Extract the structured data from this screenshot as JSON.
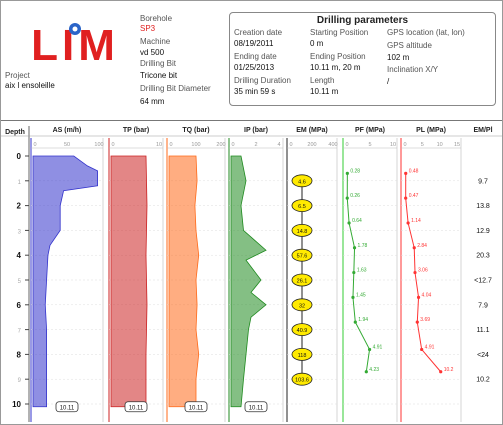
{
  "logo": {
    "text": "LIM"
  },
  "borehole": {
    "label": "Borehole",
    "value": "SP3"
  },
  "machine": {
    "label": "Machine",
    "value": "vd 500"
  },
  "drilling_bit": {
    "label": "Drilling Bit",
    "value": "Tricone bit"
  },
  "drilling_bit_diameter": {
    "label": "Drilling Bit Diameter",
    "value": "64 mm"
  },
  "project": {
    "label": "Project",
    "value": "aix l ensoleille"
  },
  "drilling_parameters": {
    "title": "Drilling parameters",
    "creation_date_label": "Creation date",
    "creation_date": "08/19/2011",
    "ending_date_label": "Ending date",
    "ending_date": "01/25/2013",
    "drilling_duration_label": "Drilling Duration",
    "drilling_duration": "35 min 59 s",
    "starting_position_label": "Starting Position",
    "starting_position": "0 m",
    "ending_position_label": "Ending Position",
    "ending_position": "10.11 m, 20 m",
    "length_label": "Length",
    "length": "10.11 m",
    "gps_location_label": "GPS location (lat, lon)",
    "gps_altitude_label": "GPS altitude",
    "gps_altitude": "102 m",
    "inclination_label": "Inclination X/Y",
    "inclination": "/"
  },
  "chart_data": {
    "type": "line",
    "y_axis": {
      "label": "Depth",
      "range": [
        0,
        10
      ],
      "ticks": [
        "0",
        "1",
        "2",
        "3",
        "4",
        "5",
        "6",
        "7",
        "8",
        "9",
        "10"
      ]
    },
    "end_depth_label": "10.11",
    "columns": [
      {
        "name": "AS (m/h)",
        "ticks": [
          "0",
          "50",
          "100"
        ],
        "xlim": [
          0,
          100
        ],
        "color": "#3333cc"
      },
      {
        "name": "TP (bar)",
        "ticks": [
          "0",
          "10"
        ],
        "xlim": [
          0,
          10
        ],
        "color": "#cc2222"
      },
      {
        "name": "TQ (bar)",
        "ticks": [
          "0",
          "100",
          "200"
        ],
        "xlim": [
          0,
          200
        ],
        "color": "#ff6a1a"
      },
      {
        "name": "IP (bar)",
        "ticks": [
          "0",
          "2",
          "4"
        ],
        "xlim": [
          0,
          4
        ],
        "color": "#1f8a1f"
      },
      {
        "name": "EM (MPa)",
        "ticks": [
          "0",
          "200",
          "400"
        ],
        "xlim": [
          0,
          400
        ],
        "color": "#222222"
      },
      {
        "name": "PF (MPa)",
        "ticks": [
          "0",
          "5",
          "10"
        ],
        "xlim": [
          0,
          10
        ],
        "color": "#33cc33"
      },
      {
        "name": "PL (MPa)",
        "ticks": [
          "0",
          "5",
          "10",
          "15"
        ],
        "xlim": [
          0,
          15
        ],
        "color": "#ff3333"
      },
      {
        "name": "EM/Pl",
        "ticks": [],
        "xlim": null,
        "color": "#222222"
      }
    ],
    "em": {
      "depths": [
        1,
        2,
        3,
        4,
        5,
        6,
        7,
        8,
        9
      ],
      "labels": [
        "4.6",
        "6.5",
        "14.8",
        "57.6",
        "26.1",
        "32",
        "40.9",
        "118",
        "103.6"
      ]
    },
    "pf": {
      "depths": [
        0.7,
        1.7,
        2.7,
        3.7,
        4.7,
        5.7,
        6.7,
        7.8,
        8.7
      ],
      "values": [
        0.28,
        0.26,
        0.64,
        1.78,
        1.63,
        1.45,
        1.94,
        4.91,
        4.23
      ],
      "labels": [
        "0.28",
        "0.26",
        "0.64",
        "1.78",
        "1.63",
        "1.45",
        "1.94",
        "4.91",
        "4.23"
      ]
    },
    "pl": {
      "depths": [
        0.7,
        1.7,
        2.7,
        3.7,
        4.7,
        5.7,
        6.7,
        7.8,
        8.7
      ],
      "values": [
        0.48,
        0.47,
        1.14,
        2.84,
        3.06,
        4.04,
        3.69,
        4.91,
        10.2
      ],
      "labels": [
        "0.48",
        "0.47",
        "1.14",
        "2.84",
        "3.06",
        "4.04",
        "3.69",
        "4.91",
        "10.2"
      ]
    },
    "em_pl": {
      "depths": [
        1,
        2,
        3,
        4,
        5,
        6,
        7,
        8,
        9
      ],
      "labels": [
        "9.7",
        "13.8",
        "12.9",
        "20.3",
        "<12.7",
        "7.9",
        "11.1",
        "<24",
        "10.2"
      ]
    }
  }
}
